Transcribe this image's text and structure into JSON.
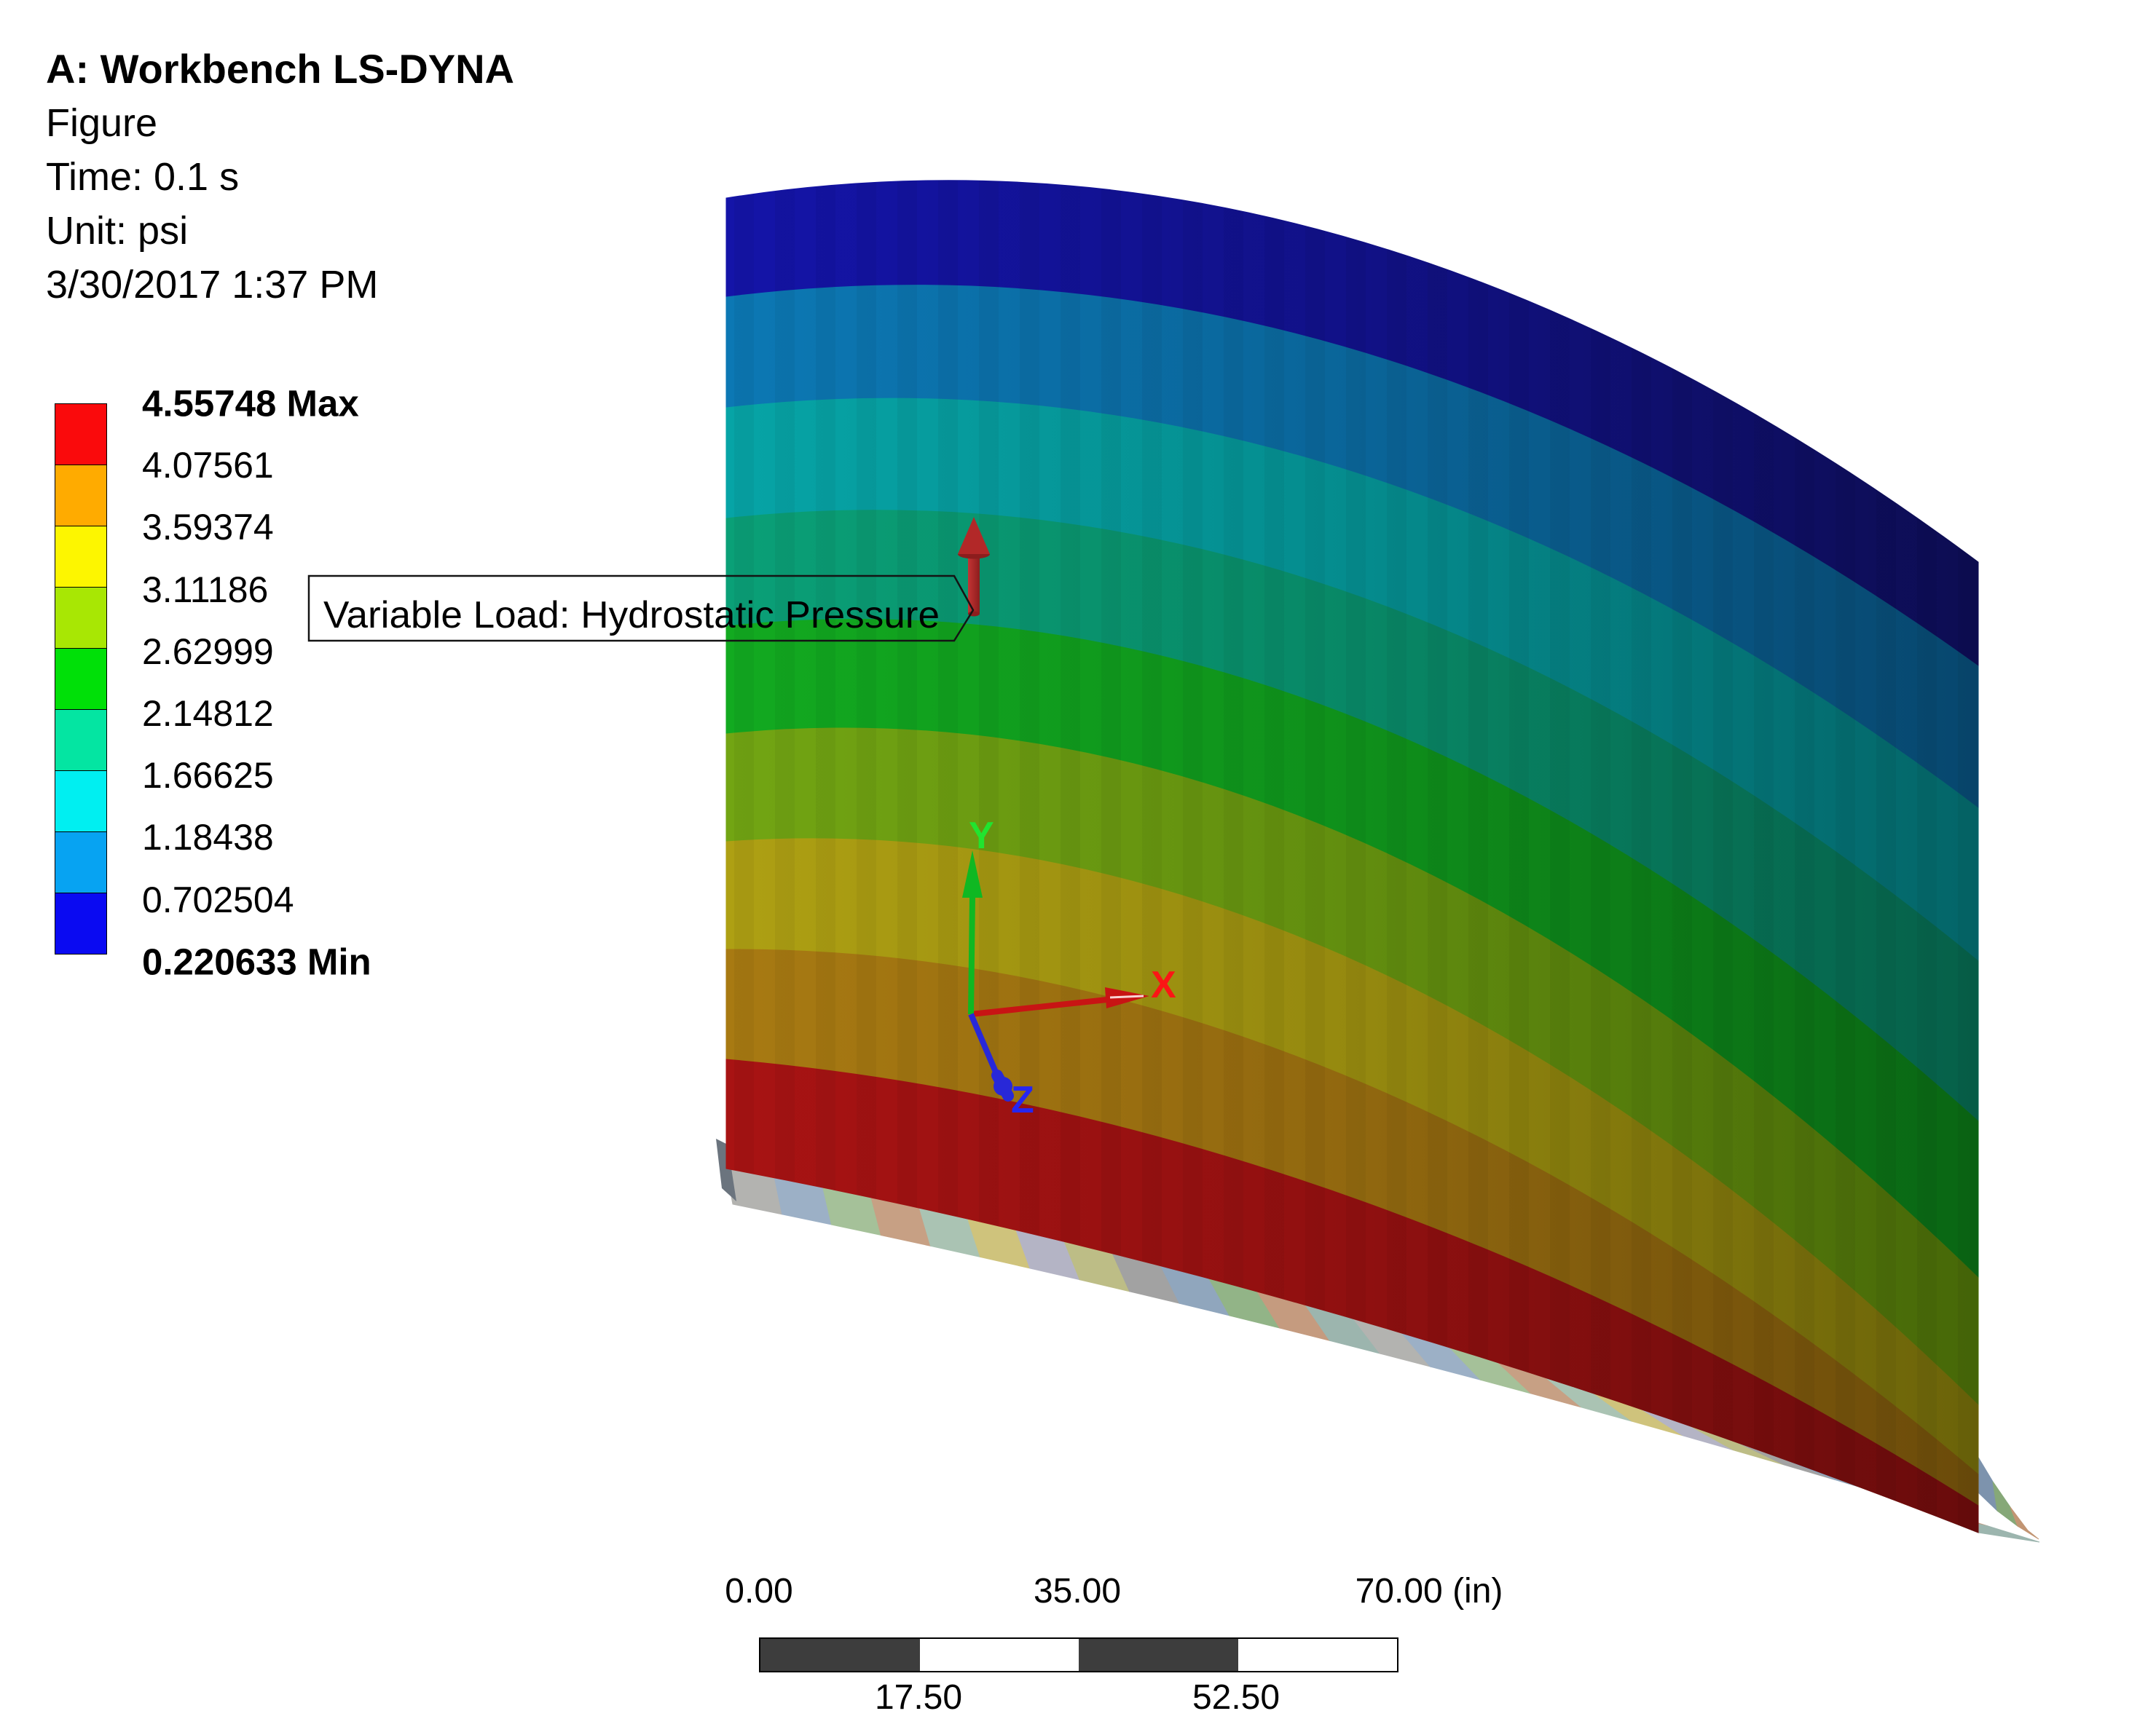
{
  "header": {
    "title": "A: Workbench LS-DYNA",
    "subtitle": "Figure",
    "time": "Time: 0.1 s",
    "unit": "Unit: psi",
    "timestamp": "3/30/2017 1:37 PM"
  },
  "legend": {
    "values": [
      "4.55748 Max",
      "4.07561",
      "3.59374",
      "3.11186",
      "2.62999",
      "2.14812",
      "1.66625",
      "1.18438",
      "0.702504",
      "0.220633 Min"
    ],
    "colors": [
      "#fa0a0c",
      "#ffab00",
      "#fdf600",
      "#a8e704",
      "#00e008",
      "#04e5a2",
      "#00eff1",
      "#07a3f2",
      "#0a0af2"
    ]
  },
  "callout": {
    "text": "Variable Load: Hydrostatic Pressure",
    "border": "#141414"
  },
  "load_arrow": {
    "color": "#b22828",
    "dark": "#8c1d1d",
    "light": "#c43434"
  },
  "triad": {
    "x_label": "X",
    "y_label": "Y",
    "z_label": "Z",
    "x_color": "#fb1515",
    "y_color": "#21e42f",
    "z_color": "#2626f0",
    "x_shaft": "#c81414",
    "y_shaft": "#0fb822",
    "z_shaft": "#2828d8"
  },
  "ruler": {
    "labels_top": [
      "0.00",
      "35.00",
      "70.00 (in)"
    ],
    "labels_bottom": [
      "17.50",
      "52.50"
    ],
    "dark": "#3d3d3d",
    "light": "#ffffff"
  },
  "model": {
    "band_colors_left": [
      "#1414a8",
      "#0c78b4",
      "#06a4a6",
      "#0aa077",
      "#12aa20",
      "#72a513",
      "#aea013",
      "#a87a12",
      "#a81313"
    ],
    "band_colors_right": [
      "#0d0d52",
      "#07476e",
      "#046568",
      "#066049",
      "#0a6614",
      "#476808",
      "#6b6309",
      "#6b4b0a",
      "#690c0c"
    ],
    "flange_palette": [
      "#b3b3b0",
      "#9cb0c6",
      "#a5c199",
      "#c7a084",
      "#aac3b3",
      "#cfc37c",
      "#b4b4c5",
      "#bdbd86",
      "#a2a2a2",
      "#90a6bd",
      "#92b487",
      "#c59b7f",
      "#9cb5ae"
    ],
    "tail_colors": [
      "#7d93ad",
      "#86a878",
      "#c29573"
    ],
    "sliver_color": "#6b747e"
  }
}
